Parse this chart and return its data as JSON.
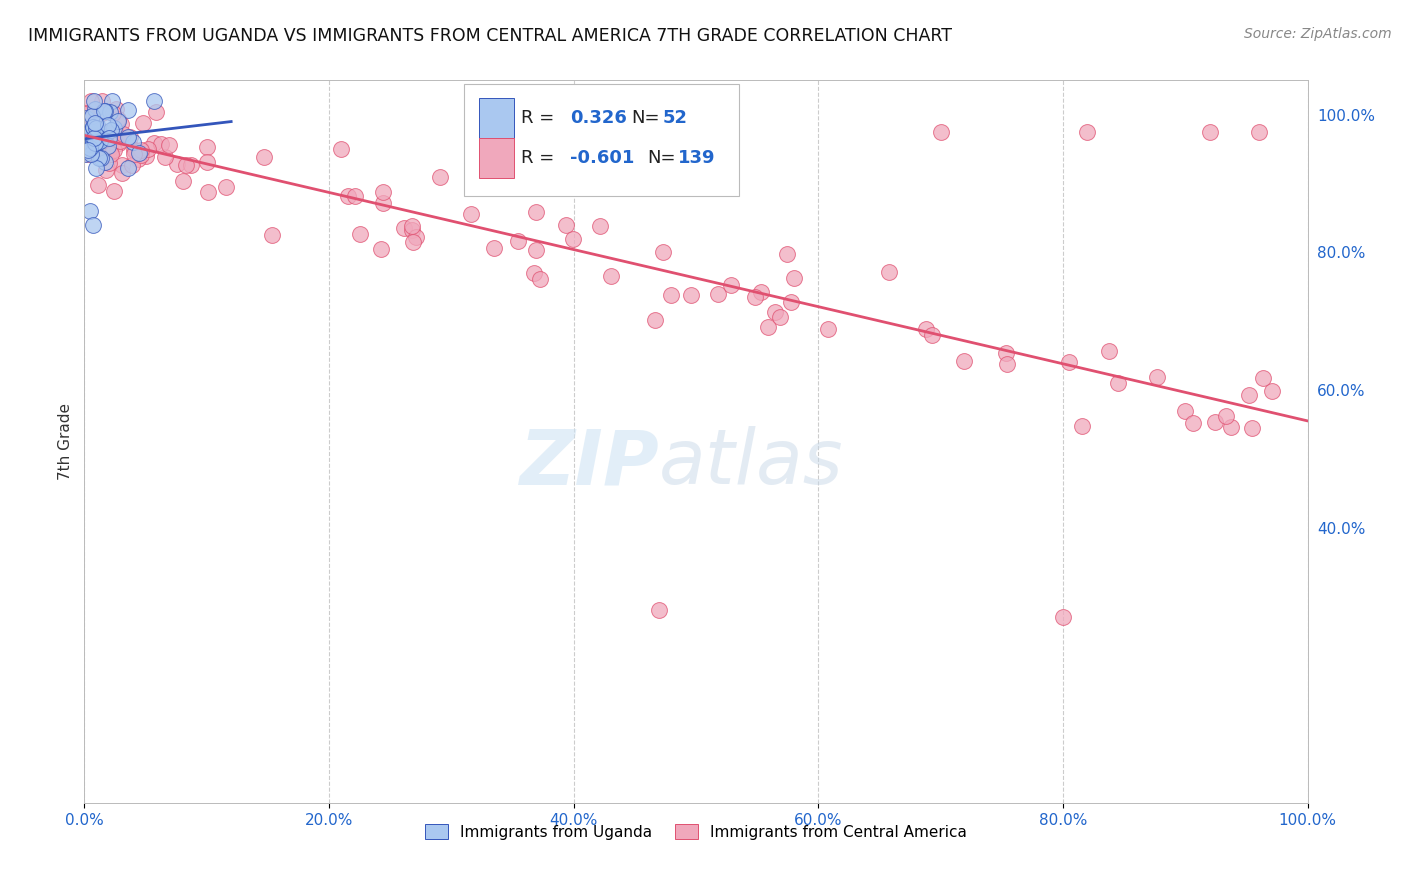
{
  "title": "IMMIGRANTS FROM UGANDA VS IMMIGRANTS FROM CENTRAL AMERICA 7TH GRADE CORRELATION CHART",
  "source": "Source: ZipAtlas.com",
  "ylabel": "7th Grade",
  "xlabel": "",
  "xlim": [
    0.0,
    1.0
  ],
  "ylim": [
    0.0,
    1.05
  ],
  "xtick_positions": [
    0.0,
    0.2,
    0.4,
    0.6,
    0.8,
    1.0
  ],
  "xtick_labels": [
    "0.0%",
    "20.0%",
    "40.0%",
    "60.0%",
    "80.0%",
    "100.0%"
  ],
  "ytick_positions": [
    0.4,
    0.6,
    0.8,
    1.0
  ],
  "ytick_labels": [
    "40.0%",
    "60.0%",
    "80.0%",
    "100.0%"
  ],
  "grid_color": "#cccccc",
  "background_color": "#ffffff",
  "legend_R1": "0.326",
  "legend_N1": "52",
  "legend_R2": "-0.601",
  "legend_N2": "139",
  "color_uganda": "#aac8f0",
  "color_central": "#f0a8bc",
  "line_color_uganda": "#3355bb",
  "line_color_central": "#e05070",
  "watermark": "ZIPatlas",
  "legend_label1": "Immigrants from Uganda",
  "legend_label2": "Immigrants from Central America",
  "ca_line_x0": 0.0,
  "ca_line_y0": 0.97,
  "ca_line_x1": 1.0,
  "ca_line_y1": 0.555,
  "ug_line_x0": 0.0,
  "ug_line_y0": 0.965,
  "ug_line_x1": 0.12,
  "ug_line_y1": 0.99
}
